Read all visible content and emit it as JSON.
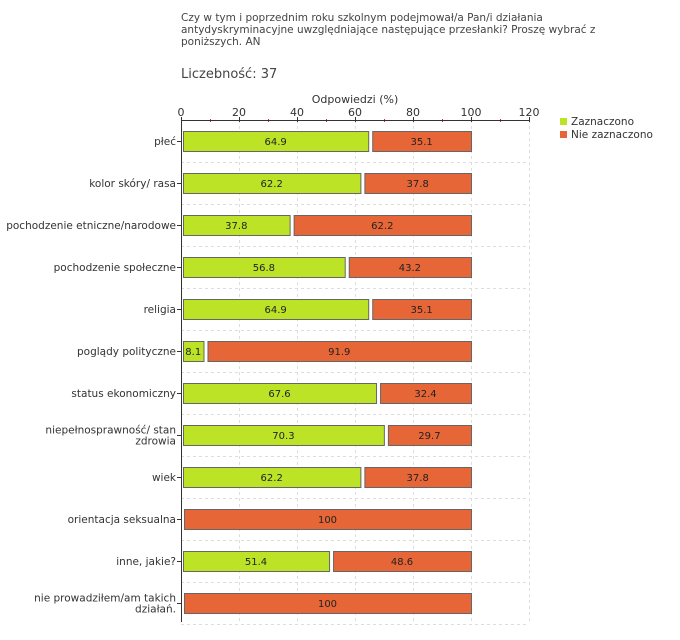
{
  "question": "Czy  w tym i poprzednim roku szkolnym podejmował/a Pan/i działania antydyskryminacyjne uwzględniające następujące przesłanki? Proszę wybrać z poniższych. AN",
  "count_label": "Liczebność:",
  "count_value": "37",
  "colors": {
    "selected": "#bde327",
    "not_selected": "#e66637"
  },
  "chart_data": {
    "type": "bar",
    "orientation": "horizontal",
    "stacked": true,
    "xlabel": "Odpowiedzi (%)",
    "xlim": [
      0,
      120
    ],
    "xticks": [
      0,
      20,
      40,
      60,
      80,
      100,
      120
    ],
    "grid": true,
    "legend_position": "top-right",
    "categories": [
      [
        "płeć"
      ],
      [
        "kolor skóry/ rasa"
      ],
      [
        "pochodzenie etniczne/narodowe"
      ],
      [
        "pochodzenie społeczne"
      ],
      [
        "religia"
      ],
      [
        "poglądy polityczne"
      ],
      [
        "status ekonomiczny"
      ],
      [
        "niepełnosprawność/ stan",
        "zdrowia"
      ],
      [
        "wiek"
      ],
      [
        "orientacja seksualna"
      ],
      [
        "inne, jakie?"
      ],
      [
        "nie prowadziłem/am takich",
        "działań."
      ]
    ],
    "series": [
      {
        "name": "Zaznaczono",
        "values": [
          64.9,
          62.2,
          37.8,
          56.8,
          64.9,
          8.1,
          67.6,
          70.3,
          62.2,
          0,
          51.4,
          0
        ]
      },
      {
        "name": "Nie zaznaczono",
        "values": [
          35.1,
          37.8,
          62.2,
          43.2,
          35.1,
          91.9,
          32.4,
          29.7,
          37.8,
          100,
          48.6,
          100
        ]
      }
    ]
  }
}
